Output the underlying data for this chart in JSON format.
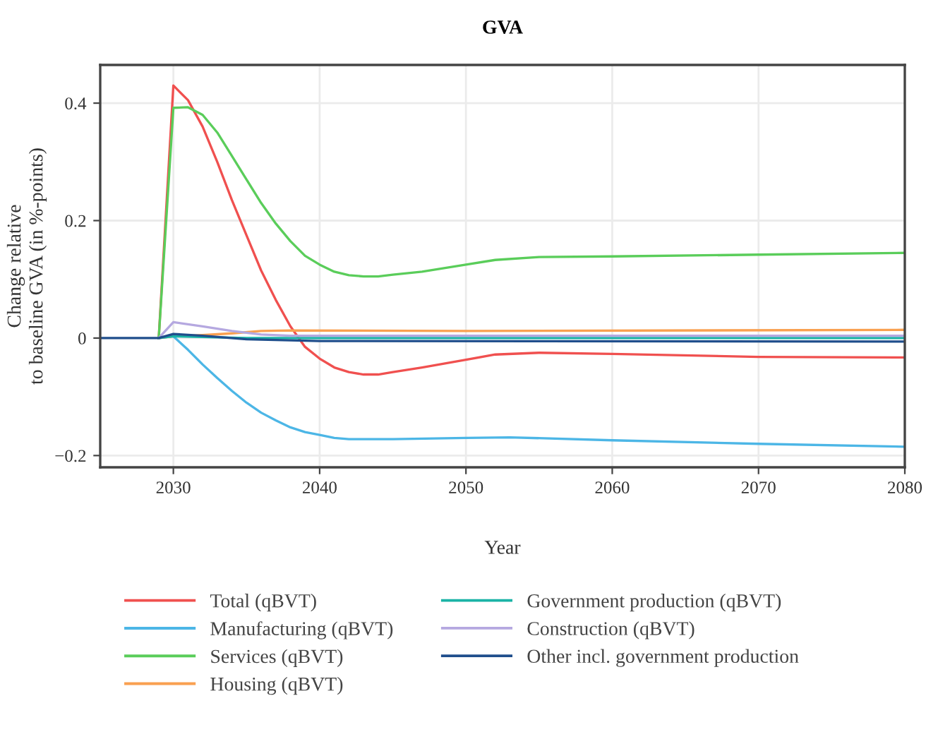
{
  "chart_data": {
    "type": "line",
    "title": "GVA",
    "xlabel": "Year",
    "ylabel": "Change relative\nto baseline GVA (in %-points)",
    "xlim": [
      2025,
      2080
    ],
    "xticks": [
      2030,
      2040,
      2050,
      2060,
      2070,
      2080
    ],
    "ylim": [
      -0.22,
      0.465
    ],
    "yticks": [
      {
        "value": -0.2,
        "label": "−0.2"
      },
      0,
      0.2,
      0.4
    ],
    "grid": true,
    "legend": "bottom",
    "marker": "none",
    "line_style": "solid",
    "series": [
      {
        "name": "Total (qBVT)",
        "color": "#f0504f",
        "x": [
          2029,
          2030,
          2031,
          2032,
          2033,
          2034,
          2035,
          2036,
          2037,
          2038,
          2039,
          2040,
          2041,
          2042,
          2043,
          2044,
          2045,
          2047,
          2050,
          2052,
          2055,
          2060,
          2070,
          2080
        ],
        "values": [
          0,
          0.43,
          0.405,
          0.36,
          0.3,
          0.235,
          0.175,
          0.115,
          0.065,
          0.02,
          -0.015,
          -0.035,
          -0.05,
          -0.058,
          -0.062,
          -0.062,
          -0.058,
          -0.05,
          -0.037,
          -0.028,
          -0.025,
          -0.027,
          -0.032,
          -0.033
        ]
      },
      {
        "name": "Manufacturing (qBVT)",
        "color": "#4cb6e6",
        "x": [
          2029,
          2030,
          2031,
          2032,
          2033,
          2034,
          2035,
          2036,
          2037,
          2038,
          2039,
          2040,
          2041,
          2042,
          2045,
          2050,
          2053,
          2060,
          2070,
          2080
        ],
        "values": [
          0,
          0.003,
          -0.02,
          -0.045,
          -0.068,
          -0.09,
          -0.11,
          -0.127,
          -0.14,
          -0.152,
          -0.16,
          -0.165,
          -0.17,
          -0.172,
          -0.172,
          -0.17,
          -0.169,
          -0.174,
          -0.18,
          -0.185
        ]
      },
      {
        "name": "Services (qBVT)",
        "color": "#5acd5a",
        "x": [
          2029,
          2030,
          2031,
          2032,
          2033,
          2034,
          2035,
          2036,
          2037,
          2038,
          2039,
          2040,
          2041,
          2042,
          2043,
          2044,
          2045,
          2047,
          2050,
          2052,
          2055,
          2060,
          2070,
          2080
        ],
        "values": [
          0,
          0.392,
          0.393,
          0.38,
          0.35,
          0.31,
          0.27,
          0.23,
          0.195,
          0.165,
          0.14,
          0.125,
          0.113,
          0.107,
          0.105,
          0.105,
          0.108,
          0.113,
          0.125,
          0.133,
          0.138,
          0.139,
          0.142,
          0.145
        ]
      },
      {
        "name": "Housing (qBVT)",
        "color": "#f9a050",
        "x": [
          2029,
          2030,
          2032,
          2034,
          2036,
          2038,
          2050,
          2080
        ],
        "values": [
          0,
          0.003,
          0.005,
          0.008,
          0.012,
          0.013,
          0.012,
          0.014
        ]
      },
      {
        "name": "Government production (qBVT)",
        "color": "#1ab3a6",
        "x": [
          2029,
          2030,
          2035,
          2050,
          2080
        ],
        "values": [
          0,
          0.003,
          0,
          0,
          0
        ]
      },
      {
        "name": "Construction (qBVT)",
        "color": "#b5a8e0",
        "x": [
          2029,
          2030,
          2032,
          2034,
          2036,
          2038,
          2080
        ],
        "values": [
          0,
          0.027,
          0.02,
          0.012,
          0.006,
          0.004,
          0.004
        ]
      },
      {
        "name": "Other incl. government production",
        "color": "#1f4e8c",
        "x": [
          2025,
          2029,
          2030,
          2032,
          2035,
          2040,
          2080
        ],
        "values": [
          0,
          0,
          0.007,
          0.004,
          -0.002,
          -0.005,
          -0.006
        ]
      }
    ]
  }
}
